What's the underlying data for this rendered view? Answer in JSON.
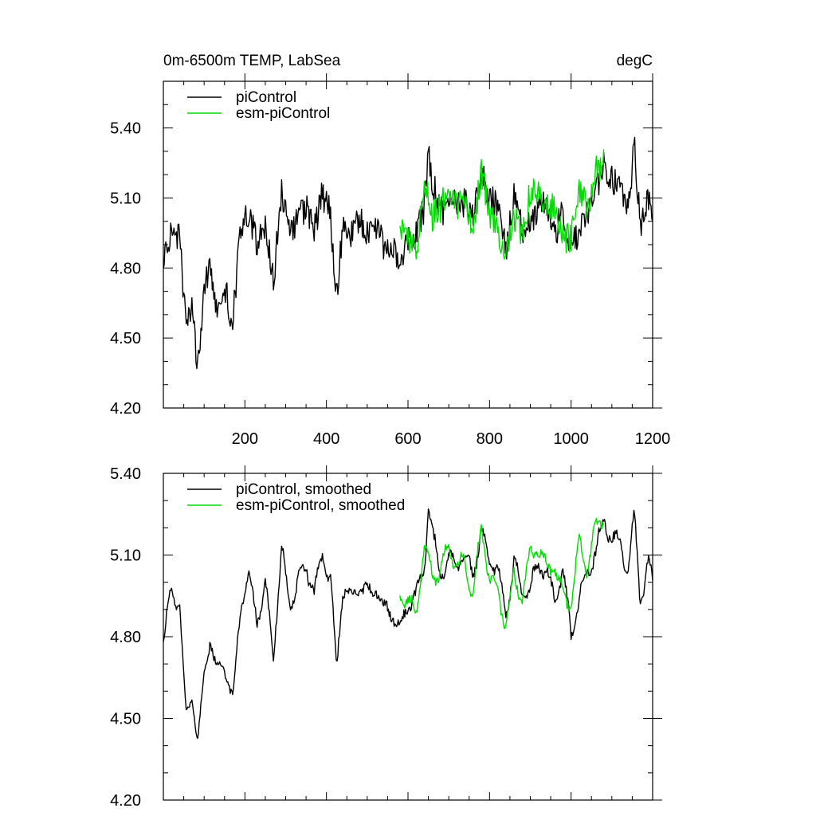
{
  "chart_data": [
    {
      "type": "line",
      "title": "0m-6500m TEMP, LabSea",
      "units": "degC",
      "xlim": [
        0,
        1200
      ],
      "ylim": [
        4.2,
        5.6
      ],
      "xticks": [
        200,
        400,
        600,
        800,
        1000,
        1200
      ],
      "xtick_labels": [
        "200",
        "400",
        "600",
        "800",
        "1000",
        "1200"
      ],
      "yticks": [
        4.2,
        4.5,
        4.8,
        5.1,
        5.4
      ],
      "ytick_labels": [
        "4.20",
        "4.50",
        "4.80",
        "5.10",
        "5.40"
      ],
      "legend": "top-left",
      "series": [
        {
          "name": "piControl",
          "color": "#000000",
          "x": [
            0,
            20,
            40,
            55,
            70,
            85,
            100,
            115,
            130,
            150,
            170,
            190,
            210,
            230,
            250,
            270,
            290,
            310,
            330,
            350,
            370,
            390,
            410,
            425,
            440,
            460,
            480,
            500,
            520,
            540,
            560,
            580,
            600,
            620,
            640,
            650,
            660,
            680,
            700,
            720,
            740,
            760,
            780,
            800,
            820,
            840,
            860,
            880,
            900,
            920,
            940,
            960,
            980,
            1000,
            1020,
            1040,
            1060,
            1080,
            1100,
            1120,
            1140,
            1155,
            1170,
            1190,
            1200
          ],
          "values": [
            4.84,
            4.96,
            4.93,
            4.55,
            4.62,
            4.38,
            4.7,
            4.82,
            4.63,
            4.72,
            4.56,
            4.98,
            5.03,
            4.9,
            4.99,
            4.74,
            5.14,
            4.94,
            5.02,
            5.06,
            4.96,
            5.12,
            5.03,
            4.65,
            5.0,
            4.94,
            5.02,
            4.96,
            5.0,
            4.9,
            4.9,
            4.79,
            4.93,
            4.94,
            5.06,
            5.28,
            5.17,
            5.04,
            5.07,
            5.08,
            5.08,
            5.04,
            5.21,
            5.1,
            5.06,
            4.87,
            5.1,
            4.97,
            4.98,
            5.08,
            5.05,
            4.93,
            5.06,
            4.88,
            4.97,
            5.03,
            5.13,
            5.25,
            5.18,
            5.14,
            5.07,
            5.32,
            4.99,
            5.1,
            4.95
          ]
        },
        {
          "name": "esm-piControl",
          "color": "#00dd00",
          "x": [
            580,
            600,
            620,
            640,
            660,
            680,
            700,
            720,
            740,
            760,
            780,
            800,
            820,
            840,
            860,
            880,
            900,
            920,
            940,
            960,
            980,
            1000,
            1020,
            1040,
            1060,
            1080
          ],
          "values": [
            4.96,
            4.92,
            4.87,
            5.16,
            5.02,
            5.05,
            5.15,
            5.06,
            5.08,
            4.95,
            5.22,
            5.02,
            4.96,
            4.84,
            5.03,
            4.93,
            5.13,
            5.14,
            5.06,
            5.06,
            4.93,
            4.93,
            5.15,
            5.04,
            5.22,
            5.25
          ]
        }
      ]
    },
    {
      "type": "line",
      "xlim": [
        0,
        1200
      ],
      "ylim": [
        4.2,
        5.4
      ],
      "xticks": [
        200,
        400,
        600,
        800,
        1000,
        1200
      ],
      "yticks": [
        4.2,
        4.5,
        4.8,
        5.1,
        5.4
      ],
      "ytick_labels": [
        "4.20",
        "4.50",
        "4.80",
        "5.10",
        "5.40"
      ],
      "legend": "top-left",
      "series": [
        {
          "name": "piControl, smoothed",
          "color": "#000000",
          "x": [
            0,
            20,
            40,
            55,
            70,
            85,
            100,
            115,
            130,
            150,
            170,
            190,
            210,
            230,
            250,
            270,
            290,
            310,
            330,
            350,
            370,
            390,
            410,
            425,
            440,
            460,
            480,
            500,
            520,
            540,
            560,
            580,
            600,
            620,
            640,
            650,
            660,
            680,
            700,
            720,
            740,
            760,
            780,
            800,
            820,
            840,
            860,
            880,
            900,
            920,
            940,
            960,
            980,
            1000,
            1020,
            1040,
            1060,
            1080,
            1100,
            1120,
            1140,
            1155,
            1170,
            1190,
            1200
          ],
          "values": [
            4.77,
            4.98,
            4.92,
            4.51,
            4.6,
            4.4,
            4.67,
            4.8,
            4.66,
            4.7,
            4.55,
            4.93,
            5.02,
            4.87,
            4.98,
            4.74,
            5.12,
            4.92,
            5.0,
            5.06,
            4.96,
            5.1,
            5.01,
            4.68,
            4.99,
            4.93,
            5.0,
            4.95,
            4.99,
            4.9,
            4.9,
            4.82,
            4.93,
            4.94,
            5.06,
            5.28,
            5.17,
            5.04,
            5.07,
            5.08,
            5.08,
            5.04,
            5.18,
            5.08,
            5.05,
            4.88,
            5.07,
            4.96,
            4.98,
            5.07,
            5.04,
            4.93,
            5.05,
            4.8,
            4.95,
            5.03,
            5.12,
            5.22,
            5.17,
            5.14,
            5.05,
            5.25,
            4.93,
            5.08,
            5.0
          ]
        },
        {
          "name": "esm-piControl, smoothed",
          "color": "#00dd00",
          "x": [
            580,
            600,
            620,
            640,
            660,
            680,
            700,
            720,
            740,
            760,
            780,
            800,
            820,
            840,
            860,
            880,
            900,
            920,
            940,
            960,
            980,
            1000,
            1020,
            1040,
            1060,
            1080
          ],
          "values": [
            4.95,
            4.93,
            4.88,
            5.14,
            5.02,
            5.05,
            5.12,
            5.06,
            5.07,
            4.96,
            5.2,
            5.02,
            4.96,
            4.85,
            5.02,
            4.94,
            5.11,
            5.13,
            5.05,
            5.06,
            4.94,
            4.93,
            5.14,
            5.05,
            5.2,
            5.24
          ]
        }
      ]
    }
  ]
}
